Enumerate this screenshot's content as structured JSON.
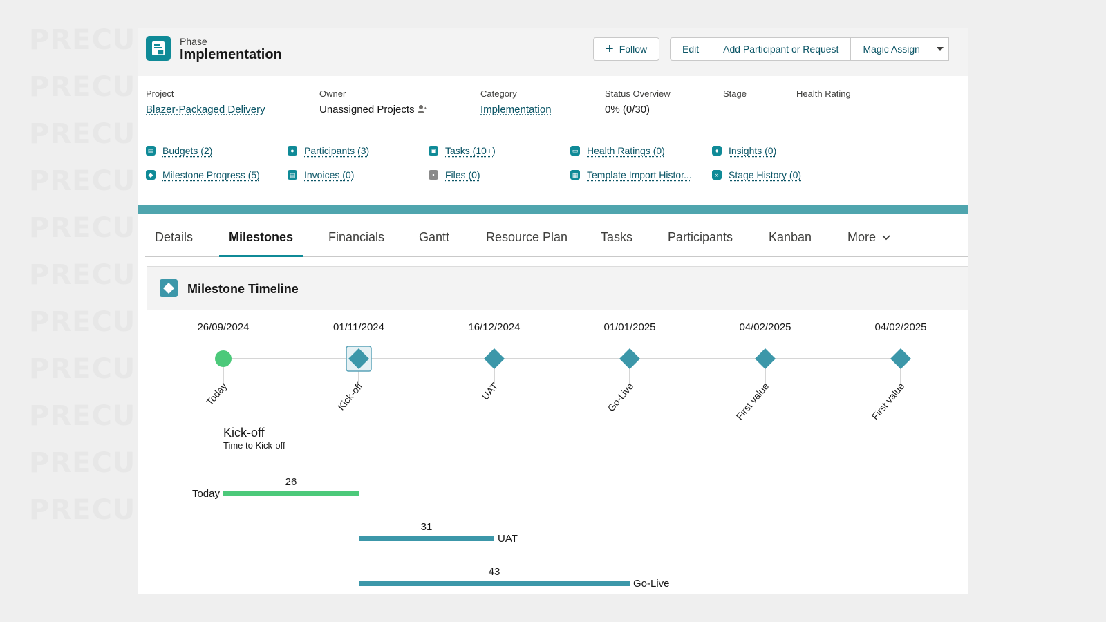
{
  "watermark": {
    "text": "PRECU",
    "rows": 11
  },
  "header": {
    "object_label": "Phase",
    "title": "Implementation",
    "buttons": {
      "follow": "Follow",
      "edit": "Edit",
      "add_participant": "Add Participant or Request",
      "magic_assign": "Magic Assign"
    }
  },
  "fields": [
    {
      "label": "Project",
      "value": "Blazer-Packaged Delivery",
      "link": true
    },
    {
      "label": "Owner",
      "value": "Unassigned Projects",
      "link": false
    },
    {
      "label": "Category",
      "value": "Implementation",
      "link": true
    },
    {
      "label": "Status Overview",
      "value": "0% (0/30)",
      "link": false
    },
    {
      "label": "Stage",
      "value": "",
      "link": false
    },
    {
      "label": "Health Rating",
      "value": "",
      "link": false
    }
  ],
  "related_lists": [
    {
      "label": "Budgets (2)",
      "icon": "budget-icon"
    },
    {
      "label": "Participants (3)",
      "icon": "participant-icon"
    },
    {
      "label": "Tasks (10+)",
      "icon": "task-icon"
    },
    {
      "label": "Health Ratings (0)",
      "icon": "health-icon"
    },
    {
      "label": "Insights (0)",
      "icon": "insight-icon"
    },
    {
      "label": "Milestone Progress (5)",
      "icon": "milestone-icon"
    },
    {
      "label": "Invoices (0)",
      "icon": "invoice-icon"
    },
    {
      "label": "Files (0)",
      "icon": "file-icon"
    },
    {
      "label": "Template Import Histor...",
      "icon": "template-icon"
    },
    {
      "label": "Stage History (0)",
      "icon": "stage-icon"
    }
  ],
  "tabs": [
    {
      "label": "Details"
    },
    {
      "label": "Milestones",
      "active": true
    },
    {
      "label": "Financials"
    },
    {
      "label": "Gantt"
    },
    {
      "label": "Resource Plan"
    },
    {
      "label": "Tasks"
    },
    {
      "label": "Participants"
    },
    {
      "label": "Kanban"
    },
    {
      "label": "More"
    }
  ],
  "panel": {
    "title": "Milestone Timeline",
    "selected_title": "Kick-off",
    "selected_subtitle": "Time to Kick-off"
  },
  "chart_data": {
    "type": "timeline",
    "milestones": [
      {
        "date": "26/09/2024",
        "label": "Today",
        "marker": "circle",
        "color": "#4cc97a"
      },
      {
        "date": "01/11/2024",
        "label": "Kick-off",
        "marker": "diamond",
        "selected": true,
        "color": "#3c97a9"
      },
      {
        "date": "16/12/2024",
        "label": "UAT",
        "marker": "diamond",
        "color": "#3c97a9"
      },
      {
        "date": "01/01/2025",
        "label": "Go-Live",
        "marker": "diamond",
        "color": "#3c97a9"
      },
      {
        "date": "04/02/2025",
        "label": "First value",
        "marker": "diamond",
        "color": "#3c97a9"
      },
      {
        "date": "04/02/2025",
        "label": "First value",
        "marker": "diamond",
        "color": "#3c97a9"
      }
    ],
    "durations": [
      {
        "label": "Today",
        "value": 26,
        "from": "Today",
        "to": "Kick-off",
        "color": "#4cc97a",
        "label_side": "left"
      },
      {
        "label": "UAT",
        "value": 31,
        "from": "Kick-off",
        "to": "UAT",
        "color": "#3c97a9",
        "label_side": "right"
      },
      {
        "label": "Go-Live",
        "value": 43,
        "from": "Kick-off",
        "to": "Go-Live",
        "color": "#3c97a9",
        "label_side": "right"
      }
    ]
  }
}
